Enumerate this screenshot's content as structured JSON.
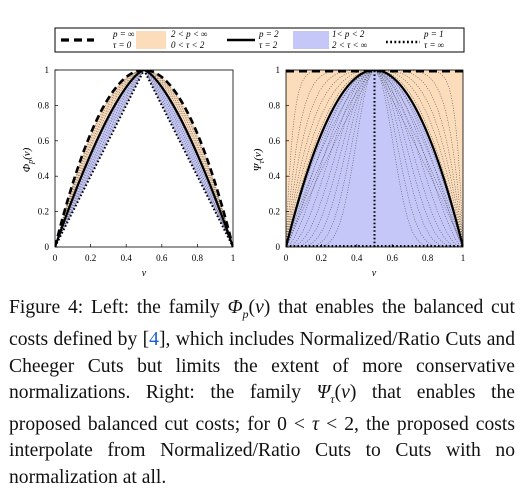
{
  "legend": {
    "items": [
      {
        "line1": "p = ∞",
        "line2": "τ = 0"
      },
      {
        "line1": "2 < p < ∞",
        "line2": "0 < τ < 2"
      },
      {
        "line1": "p = 2",
        "line2": "τ = 2"
      },
      {
        "line1": "1< p < 2",
        "line2": "2 < τ < ∞"
      },
      {
        "line1": "p = 1",
        "line2": "τ = ∞"
      }
    ]
  },
  "colors": {
    "orange_band": "#fbdcbb",
    "blue_band": "#c5c7f8",
    "curve": "#000000",
    "axis": "#000000"
  },
  "chart_data": [
    {
      "type": "line",
      "name": "left",
      "ylabel": "Φ_p(v)",
      "xlabel": "v",
      "xlim": [
        0,
        1
      ],
      "ylim": [
        0,
        1
      ],
      "x_ticks": [
        "0",
        "0.2",
        "0.4",
        "0.6",
        "0.8",
        "1"
      ],
      "y_ticks": [
        "0",
        "0.2",
        "0.4",
        "0.6",
        "0.8",
        "1"
      ],
      "series": [
        {
          "name": "p = ∞",
          "style": "dashed",
          "function": "1 - |2v - 1|^2"
        },
        {
          "name": "p = 2",
          "style": "solid",
          "function": "1 - |2v - 1|^1.45"
        },
        {
          "name": "p = 1",
          "style": "dotted",
          "function": "1 - |2v - 1|"
        }
      ],
      "bands": [
        {
          "name": "2 < p < ∞",
          "color": "orange",
          "between": [
            "p = ∞",
            "p = 2"
          ]
        },
        {
          "name": "1< p < 2",
          "color": "blue",
          "between": [
            "p = 2",
            "p = 1"
          ]
        }
      ]
    },
    {
      "type": "line",
      "name": "right",
      "ylabel": "Ψ_τ(v)",
      "xlabel": "v",
      "xlim": [
        0,
        1
      ],
      "ylim": [
        0,
        1
      ],
      "x_ticks": [
        "0",
        "0.2",
        "0.4",
        "0.6",
        "0.8",
        "1"
      ],
      "y_ticks": [
        "0",
        "0.2",
        "0.4",
        "0.6",
        "0.8",
        "1"
      ],
      "series": [
        {
          "name": "τ = 0",
          "style": "dashed",
          "function": "1"
        },
        {
          "name": "τ = 2",
          "style": "solid",
          "function": "1 - (2v - 1)^2"
        },
        {
          "name": "τ = ∞",
          "style": "dotted",
          "function": "indicator v = 0.5"
        }
      ],
      "bands": [
        {
          "name": "0 < τ < 2",
          "color": "orange",
          "between": [
            "τ = 0",
            "τ = 2"
          ]
        },
        {
          "name": "2 < τ < ∞",
          "color": "blue",
          "between": [
            "τ = 2",
            "τ = ∞"
          ]
        }
      ]
    }
  ]
}
